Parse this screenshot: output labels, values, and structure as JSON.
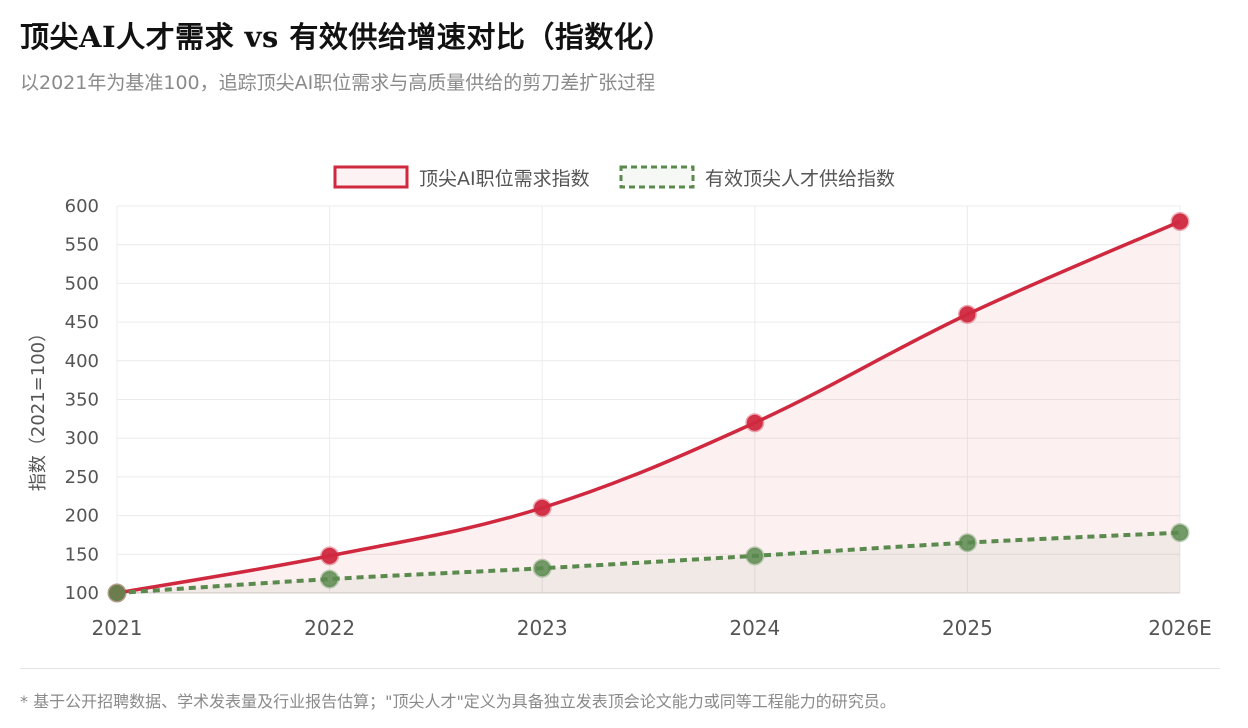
{
  "header": {
    "title": "顶尖AI人才需求 vs 有效供给增速对比（指数化）",
    "subtitle": "以2021年为基准100，追踪顶尖AI职位需求与高质量供给的剪刀差扩张过程"
  },
  "chart_data": {
    "type": "line",
    "categories": [
      "2021",
      "2022",
      "2023",
      "2024",
      "2025",
      "2026E"
    ],
    "ylabel": "指数（2021=100）",
    "ylim": [
      100,
      600
    ],
    "yticks": [
      100,
      150,
      200,
      250,
      300,
      350,
      400,
      450,
      500,
      550,
      600
    ],
    "grid": true,
    "legend_position": "top-center",
    "series": [
      {
        "name": "顶尖AI职位需求指数",
        "values": [
          100,
          148,
          210,
          320,
          460,
          580
        ],
        "color": "#d0283e",
        "style": "solid",
        "fill": "#d0283e"
      },
      {
        "name": "有效顶尖人才供给指数",
        "values": [
          100,
          118,
          132,
          148,
          165,
          178
        ],
        "color": "#5b8a4e",
        "style": "dashed",
        "fill": "#5b8a4e"
      }
    ]
  },
  "footer": {
    "note": "*  基于公开招聘数据、学术发表量及行业报告估算；\"顶尖人才\"定义为具备独立发表顶会论文能力或同等工程能力的研究员。"
  }
}
